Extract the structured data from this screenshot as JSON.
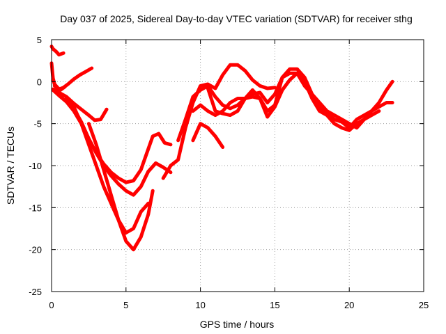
{
  "chart_data": {
    "type": "scatter",
    "title": "Day 037 of 2025, Sidereal Day-to-day VTEC variation (SDTVAR) for receiver sthg",
    "xlabel": "GPS time / hours",
    "ylabel": "SDTVAR / TECUs",
    "xlim": [
      0,
      25
    ],
    "ylim": [
      -25,
      5
    ],
    "xticks": [
      0,
      5,
      10,
      15,
      20,
      25
    ],
    "yticks": [
      5,
      0,
      -5,
      -10,
      -15,
      -20,
      -25
    ],
    "grid": true,
    "marker_color": "#ff0000",
    "series": [
      {
        "x": [
          0.0,
          0.1,
          0.3,
          0.5,
          0.8
        ],
        "y": [
          4.2,
          3.9,
          3.6,
          3.2,
          3.4
        ]
      },
      {
        "x": [
          0.0,
          0.1,
          0.2,
          0.4,
          0.6,
          0.9
        ],
        "y": [
          2.2,
          0.4,
          -0.3,
          -0.7,
          -1.0,
          -0.6
        ]
      },
      {
        "x": [
          0.2,
          0.5,
          0.8,
          1.1,
          1.5,
          1.9,
          2.3,
          2.7
        ],
        "y": [
          -0.5,
          -0.9,
          -0.7,
          -0.3,
          0.3,
          0.8,
          1.2,
          1.6
        ]
      },
      {
        "x": [
          0.1,
          0.5,
          1.0,
          1.5,
          2.0,
          2.5,
          2.9,
          3.3,
          3.7
        ],
        "y": [
          -0.9,
          -1.3,
          -1.8,
          -2.6,
          -3.3,
          -4.0,
          -4.6,
          -4.5,
          -3.3
        ]
      },
      {
        "x": [
          0.1,
          0.6,
          1.0,
          1.5,
          2.0,
          2.5,
          3.0,
          3.5,
          4.0,
          4.5,
          5.0,
          5.5,
          6.0,
          6.4,
          6.8,
          7.2,
          7.6,
          8.0
        ],
        "y": [
          -1.0,
          -1.8,
          -2.4,
          -3.5,
          -5.0,
          -6.8,
          -8.5,
          -9.8,
          -10.8,
          -11.5,
          -12.0,
          -11.8,
          -10.5,
          -8.5,
          -6.5,
          -6.2,
          -7.3,
          -7.5
        ]
      },
      {
        "x": [
          1.0,
          1.5,
          2.0,
          2.5,
          3.0,
          3.5,
          4.0,
          4.5,
          5.0,
          5.5,
          6.0,
          6.5,
          7.0,
          7.5,
          8.0
        ],
        "y": [
          -2.0,
          -3.2,
          -4.8,
          -6.8,
          -8.5,
          -10.0,
          -11.2,
          -12.2,
          -13.0,
          -13.5,
          -12.5,
          -10.7,
          -9.7,
          -10.2,
          -10.8
        ]
      },
      {
        "x": [
          1.5,
          2.0,
          2.5,
          3.0,
          3.5,
          4.0,
          4.5,
          5.0,
          5.5,
          6.0,
          6.5
        ],
        "y": [
          -3.0,
          -5.0,
          -7.5,
          -10.0,
          -12.5,
          -14.5,
          -16.5,
          -18.0,
          -17.5,
          -15.5,
          -14.5
        ]
      },
      {
        "x": [
          2.5,
          3.0,
          3.5,
          4.0,
          4.5,
          5.0,
          5.5,
          6.0,
          6.5,
          6.8
        ],
        "y": [
          -5.0,
          -7.5,
          -10.5,
          -13.5,
          -16.5,
          -19.0,
          -20.0,
          -18.5,
          -15.8,
          -13.0
        ]
      },
      {
        "x": [
          7.5,
          8.0,
          8.5,
          9.0,
          9.5,
          10.0,
          10.5,
          11.0,
          11.5,
          12.0,
          12.5,
          13.0,
          13.5,
          14.0,
          14.5,
          15.0
        ],
        "y": [
          -11.5,
          -10.0,
          -9.3,
          -5.5,
          -2.5,
          -0.5,
          -0.3,
          -0.8,
          0.8,
          2.0,
          2.0,
          1.3,
          0.2,
          -0.5,
          -0.8,
          -0.7
        ]
      },
      {
        "x": [
          8.5,
          9.0,
          9.5,
          10.0,
          10.5,
          11.0,
          11.5,
          12.0,
          12.5,
          13.0,
          13.5,
          14.0,
          14.5,
          15.0,
          15.5,
          16.0,
          16.5,
          17.0,
          17.5,
          18.0,
          18.5,
          19.0,
          19.5,
          20.0,
          20.5,
          21.0,
          21.5,
          22.0,
          22.5,
          22.9
        ],
        "y": [
          -7.0,
          -4.5,
          -1.8,
          -1.0,
          -0.5,
          -1.8,
          -2.8,
          -3.2,
          -2.8,
          -2.0,
          -1.8,
          -2.0,
          -3.5,
          -2.8,
          0.5,
          1.5,
          1.5,
          0.5,
          -1.5,
          -3.0,
          -3.8,
          -4.5,
          -4.8,
          -5.5,
          -4.5,
          -4.0,
          -3.5,
          -2.5,
          -1.0,
          0.0
        ]
      },
      {
        "x": [
          9.5,
          10.0,
          10.5,
          11.0,
          11.5,
          12.0,
          12.5,
          13.0,
          13.5,
          14.0,
          14.5,
          15.0,
          15.5,
          16.0,
          16.5,
          17.0,
          17.5,
          18.0,
          18.5,
          19.0,
          19.5,
          20.0,
          20.5,
          21.0,
          21.5,
          22.0,
          22.5,
          22.9
        ],
        "y": [
          -3.5,
          -2.8,
          -3.5,
          -4.0,
          -3.5,
          -2.5,
          -2.0,
          -2.0,
          -1.5,
          -1.3,
          -2.5,
          -1.5,
          0.5,
          1.0,
          1.0,
          -0.5,
          -1.5,
          -2.5,
          -3.5,
          -4.0,
          -4.5,
          -5.0,
          -5.5,
          -4.5,
          -3.5,
          -3.0,
          -2.5,
          -2.5
        ]
      },
      {
        "x": [
          9.5,
          10.0,
          10.5,
          11.0,
          11.5
        ],
        "y": [
          -7.0,
          -5.0,
          -5.5,
          -6.5,
          -7.8
        ]
      },
      {
        "x": [
          10.5,
          11.0,
          11.5,
          12.0,
          12.5,
          13.0,
          13.5,
          14.0,
          14.5,
          15.0,
          15.5,
          16.0,
          16.5,
          17.0,
          17.5,
          18.0,
          18.5,
          19.0,
          19.5,
          20.0,
          20.5,
          21.0,
          21.5,
          22.0
        ],
        "y": [
          -0.8,
          -3.5,
          -3.8,
          -4.0,
          -3.5,
          -2.0,
          -1.0,
          -2.0,
          -4.2,
          -3.0,
          -1.0,
          0.2,
          1.0,
          0.0,
          -2.0,
          -3.5,
          -4.0,
          -5.0,
          -5.5,
          -5.8,
          -5.0,
          -4.5,
          -4.0,
          -3.5
        ]
      }
    ]
  }
}
